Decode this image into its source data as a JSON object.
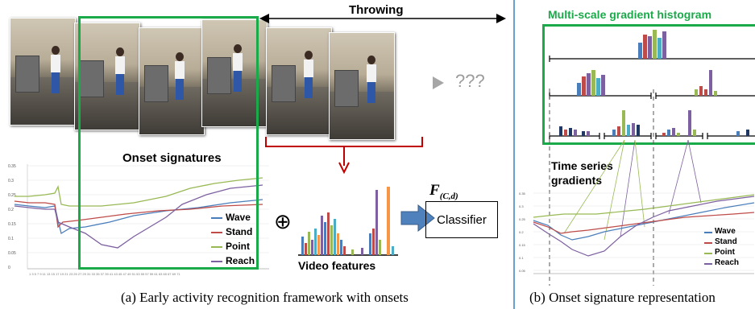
{
  "throwing_label": "Throwing",
  "unknown_label": "???",
  "onset_signatures_label": "Onset signatures",
  "video_features_label": "Video features",
  "classifier_label": "Classifier",
  "classifier_function": {
    "base": "F",
    "subscript": "(C,d)"
  },
  "plus_symbol": "⊕",
  "multiscale_label": "Multi-scale gradient histogram",
  "time_series_label_1": "Time series",
  "time_series_label_2": "gradients",
  "caption_a": "(a) Early activity recognition framework with onsets",
  "caption_b": "(b) Onset signature representation",
  "legend": [
    "Wave",
    "Stand",
    "Point",
    "Reach"
  ],
  "colors": {
    "wave": "#4a7ebb",
    "stand": "#be4b48",
    "point": "#98b954",
    "reach": "#7d60a0",
    "highlight_box": "#1aaa4a",
    "red_bracket": "#c00000",
    "blue_arrow": "#4f81bd",
    "divider": "#6a9fd4",
    "orange_bar": "#f79646"
  }
}
